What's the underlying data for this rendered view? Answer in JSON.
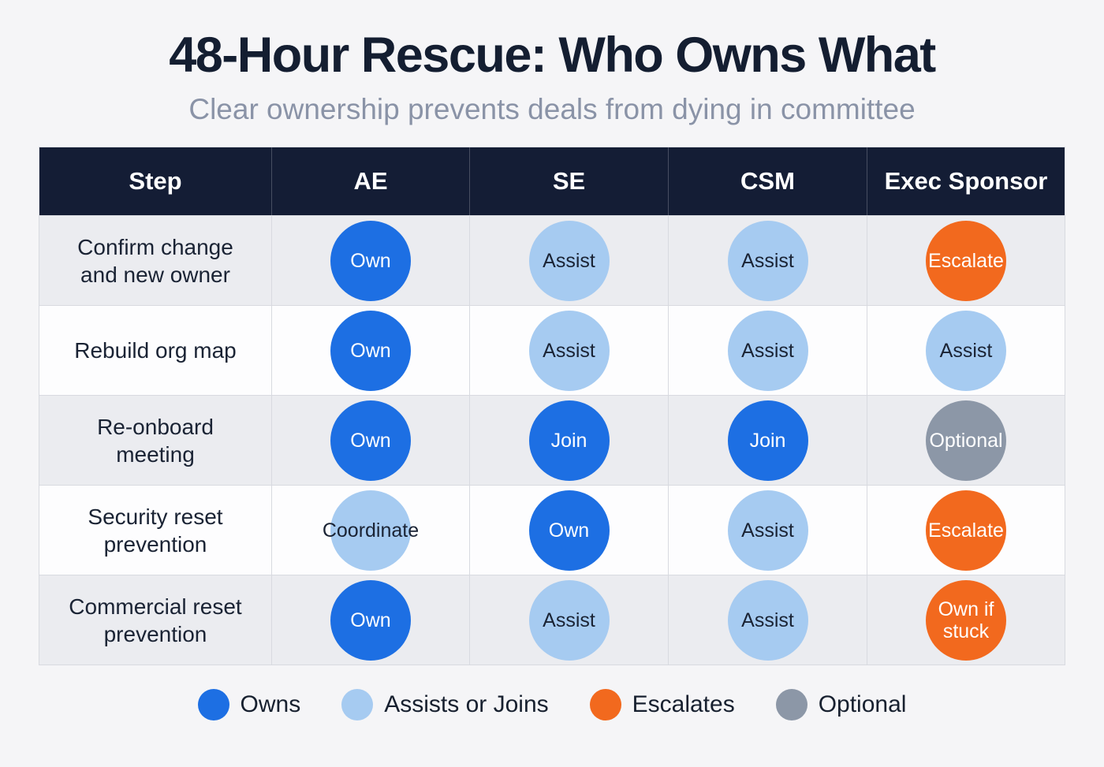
{
  "page": {
    "title": "48-Hour Rescue: Who Owns What",
    "subtitle": "Clear ownership prevents deals from dying in committee"
  },
  "colors": {
    "owns": "#1d6fe3",
    "assists": "#a6cbf1",
    "escalates": "#f2691e",
    "optional": "#8c97a7",
    "header_bg": "#141d35",
    "row_alt": "#ebecf0",
    "dark_text": "#1a2334"
  },
  "chart_data": {
    "type": "table",
    "title": "48-Hour Rescue: Who Owns What",
    "subtitle": "Clear ownership prevents deals from dying in committee",
    "columns": [
      "Step",
      "AE",
      "SE",
      "CSM",
      "Exec Sponsor"
    ],
    "rows": [
      {
        "step": "Confirm change and new owner",
        "cells": [
          {
            "label": "Own",
            "style": "owns"
          },
          {
            "label": "Assist",
            "style": "assists"
          },
          {
            "label": "Assist",
            "style": "assists"
          },
          {
            "label": "Escalate",
            "style": "escalates"
          }
        ]
      },
      {
        "step": "Rebuild org map",
        "cells": [
          {
            "label": "Own",
            "style": "owns"
          },
          {
            "label": "Assist",
            "style": "assists"
          },
          {
            "label": "Assist",
            "style": "assists"
          },
          {
            "label": "Assist",
            "style": "assists"
          }
        ]
      },
      {
        "step": "Re-onboard meeting",
        "cells": [
          {
            "label": "Own",
            "style": "owns"
          },
          {
            "label": "Join",
            "style": "owns"
          },
          {
            "label": "Join",
            "style": "owns"
          },
          {
            "label": "Optional",
            "style": "optional"
          }
        ]
      },
      {
        "step": "Security reset prevention",
        "cells": [
          {
            "label": "Coordinate",
            "style": "assists"
          },
          {
            "label": "Own",
            "style": "owns"
          },
          {
            "label": "Assist",
            "style": "assists"
          },
          {
            "label": "Escalate",
            "style": "escalates"
          }
        ]
      },
      {
        "step": "Commercial reset prevention",
        "cells": [
          {
            "label": "Own",
            "style": "owns"
          },
          {
            "label": "Assist",
            "style": "assists"
          },
          {
            "label": "Assist",
            "style": "assists"
          },
          {
            "label": "Own if stuck",
            "style": "escalates"
          }
        ]
      }
    ],
    "legend": [
      {
        "label": "Owns",
        "style": "owns"
      },
      {
        "label": "Assists or Joins",
        "style": "assists"
      },
      {
        "label": "Escalates",
        "style": "escalates"
      },
      {
        "label": "Optional",
        "style": "optional"
      }
    ]
  }
}
